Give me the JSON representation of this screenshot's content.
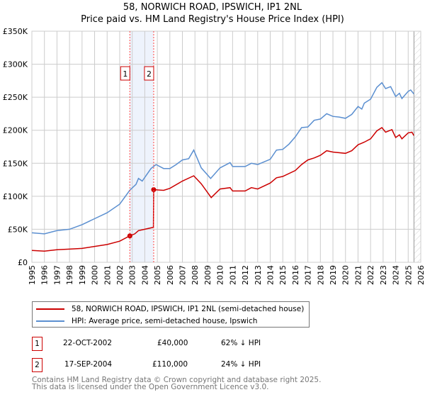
{
  "title": "58, NORWICH ROAD, IPSWICH, IP1 2NL",
  "subtitle": "Price paid vs. HM Land Registry's House Price Index (HPI)",
  "colors": {
    "property": "#cc0000",
    "hpi": "#5b8fd0",
    "grid": "#cccccc",
    "shade": "#eef3fc",
    "marker": "#ff4444"
  },
  "chart_data": {
    "type": "line",
    "title": "58, NORWICH ROAD, IPSWICH, IP1 2NL",
    "subtitle": "Price paid vs. HM Land Registry's House Price Index (HPI)",
    "xlabel": "",
    "ylabel": "",
    "xlim": [
      1995,
      2026
    ],
    "ylim": [
      0,
      350000
    ],
    "y_ticks": [
      0,
      50000,
      100000,
      150000,
      200000,
      250000,
      300000,
      350000
    ],
    "y_tick_labels": [
      "£0",
      "£50K",
      "£100K",
      "£150K",
      "£200K",
      "£250K",
      "£300K",
      "£350K"
    ],
    "x_ticks": [
      "1995",
      "1996",
      "1997",
      "1998",
      "1999",
      "2000",
      "2001",
      "2002",
      "2003",
      "2004",
      "2005",
      "2006",
      "2007",
      "2008",
      "2009",
      "2010",
      "2011",
      "2012",
      "2013",
      "2014",
      "2015",
      "2016",
      "2017",
      "2018",
      "2019",
      "2020",
      "2021",
      "2022",
      "2023",
      "2024",
      "2025",
      "2026"
    ],
    "grid": true,
    "shaded_range": [
      2002.8,
      2004.7
    ],
    "future_hatch_from": 2025.46,
    "series": [
      {
        "name": "58, NORWICH ROAD, IPSWICH, IP1 2NL (semi-detached house)",
        "x": [
          1995,
          1996,
          1997,
          1998,
          1999,
          2000,
          2001,
          2002,
          2002.8,
          2003.2,
          2003.5,
          2004,
          2004.69,
          2004.71,
          2005.5,
          2006,
          2007,
          2007.9,
          2008.5,
          2009.3,
          2010,
          2010.8,
          2011,
          2012,
          2012.5,
          2013,
          2014,
          2014.5,
          2015,
          2016,
          2016.5,
          2017,
          2017.5,
          2018,
          2018.5,
          2019,
          2020,
          2020.5,
          2021,
          2021.5,
          2022,
          2022.5,
          2022.9,
          2023.2,
          2023.7,
          2024,
          2024.3,
          2024.5,
          2025,
          2025.3,
          2025.45
        ],
        "y": [
          18000,
          17000,
          19000,
          20000,
          21000,
          24000,
          27000,
          32000,
          40000,
          43000,
          48000,
          50000,
          53000,
          110000,
          109000,
          112000,
          123000,
          131000,
          119000,
          98000,
          111000,
          113000,
          108000,
          108000,
          113000,
          111000,
          120000,
          128000,
          130000,
          139000,
          148000,
          155000,
          158000,
          162000,
          169000,
          167000,
          165000,
          169000,
          178000,
          182000,
          187000,
          199000,
          204000,
          197000,
          201000,
          189000,
          193000,
          187000,
          196000,
          197000,
          192000
        ]
      },
      {
        "name": "HPI: Average price, semi-detached house, Ipswich",
        "x": [
          1995,
          1996,
          1997,
          1998,
          1999,
          2000,
          2001,
          2002,
          2002.8,
          2003.3,
          2003.5,
          2003.8,
          2004.5,
          2004.9,
          2005.5,
          2006,
          2006.5,
          2007,
          2007.5,
          2007.9,
          2008.5,
          2009.25,
          2010,
          2010.8,
          2011,
          2012,
          2012.5,
          2013,
          2014,
          2014.5,
          2015,
          2015.5,
          2016,
          2016.5,
          2017,
          2017.5,
          2018,
          2018.5,
          2019,
          2019.5,
          2020,
          2020.5,
          2021,
          2021.3,
          2021.5,
          2022,
          2022.5,
          2022.9,
          2023.2,
          2023.6,
          2024,
          2024.3,
          2024.5,
          2025,
          2025.2,
          2025.45
        ],
        "y": [
          44700,
          43000,
          48000,
          50000,
          57000,
          66000,
          75000,
          88000,
          109000,
          118000,
          127000,
          123000,
          142000,
          148000,
          142000,
          142000,
          148000,
          155000,
          157000,
          170000,
          143000,
          127000,
          143000,
          151000,
          145000,
          145000,
          150000,
          148000,
          156000,
          170000,
          171000,
          179000,
          190000,
          204000,
          205000,
          215000,
          217000,
          225000,
          221000,
          220000,
          218000,
          224000,
          236000,
          232000,
          241000,
          247000,
          265000,
          272000,
          263000,
          266000,
          251000,
          256000,
          248000,
          259000,
          261000,
          255000
        ]
      }
    ],
    "sales": [
      {
        "label": "1",
        "x": 2002.81,
        "y": 40000
      },
      {
        "label": "2",
        "x": 2004.71,
        "y": 110000
      }
    ],
    "legend_position": "below"
  },
  "legend": {
    "property": "58, NORWICH ROAD, IPSWICH, IP1 2NL (semi-detached house)",
    "hpi": "HPI: Average price, semi-detached house, Ipswich"
  },
  "transactions": [
    {
      "num": "1",
      "date": "22-OCT-2002",
      "price": "£40,000",
      "delta": "62% ↓ HPI"
    },
    {
      "num": "2",
      "date": "17-SEP-2004",
      "price": "£110,000",
      "delta": "24% ↓ HPI"
    }
  ],
  "footer": {
    "line1": "Contains HM Land Registry data © Crown copyright and database right 2025.",
    "line2": "This data is licensed under the Open Government Licence v3.0."
  }
}
